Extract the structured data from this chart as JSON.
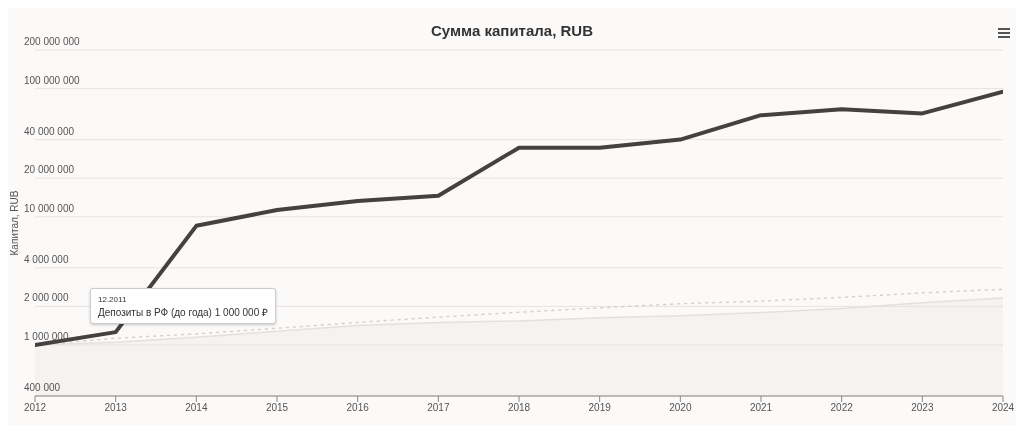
{
  "chart_data": {
    "type": "line",
    "title": "Сумма капитала, RUB",
    "ylabel": "Капитал, RUB",
    "x": [
      2012,
      2013,
      2014,
      2015,
      2016,
      2017,
      2018,
      2019,
      2020,
      2021,
      2022,
      2023,
      2024
    ],
    "series": [
      {
        "type": "area",
        "color": "#e4e0df",
        "values": [
          1000000,
          1050000,
          1150000,
          1280000,
          1420000,
          1500000,
          1540000,
          1630000,
          1690000,
          1790000,
          1930000,
          2140000,
          2330000
        ]
      },
      {
        "type": "line",
        "color": "#d8cfcf",
        "line_style": "dotted",
        "values": [
          1000000,
          1130000,
          1220000,
          1350000,
          1500000,
          1650000,
          1800000,
          1950000,
          2100000,
          2200000,
          2350000,
          2550000,
          2720000
        ]
      },
      {
        "type": "line",
        "color": "#444140",
        "values": [
          1000000,
          1260000,
          8500000,
          11300000,
          13300000,
          14600000,
          34600000,
          34600000,
          40000000,
          62000000,
          69000000,
          64000000,
          94600000
        ]
      }
    ],
    "log": true,
    "ylim": [
      400000,
      200000000
    ],
    "yticks": [
      {
        "value": 400000,
        "label": "400 000"
      },
      {
        "value": 1000000,
        "label": "1 000 000"
      },
      {
        "value": 2000000,
        "label": "2 000 000"
      },
      {
        "value": 4000000,
        "label": "4 000 000"
      },
      {
        "value": 10000000,
        "label": "10 000 000"
      },
      {
        "value": 20000000,
        "label": "20 000 000"
      },
      {
        "value": 40000000,
        "label": "40 000 000"
      },
      {
        "value": 100000000,
        "label": "100 000 000"
      },
      {
        "value": 200000000,
        "label": "200 000 000"
      }
    ],
    "xlim": [
      2012,
      2024
    ],
    "xticks": [
      2012,
      2013,
      2014,
      2015,
      2016,
      2017,
      2018,
      2019,
      2020,
      2021,
      2022,
      2023,
      2024
    ],
    "grid": "y",
    "legend": false,
    "marker": "none",
    "line_style": "solid",
    "annotations": [
      "12.2011",
      "Депозиты в РФ (до года) 1 000 000 ₽"
    ]
  }
}
